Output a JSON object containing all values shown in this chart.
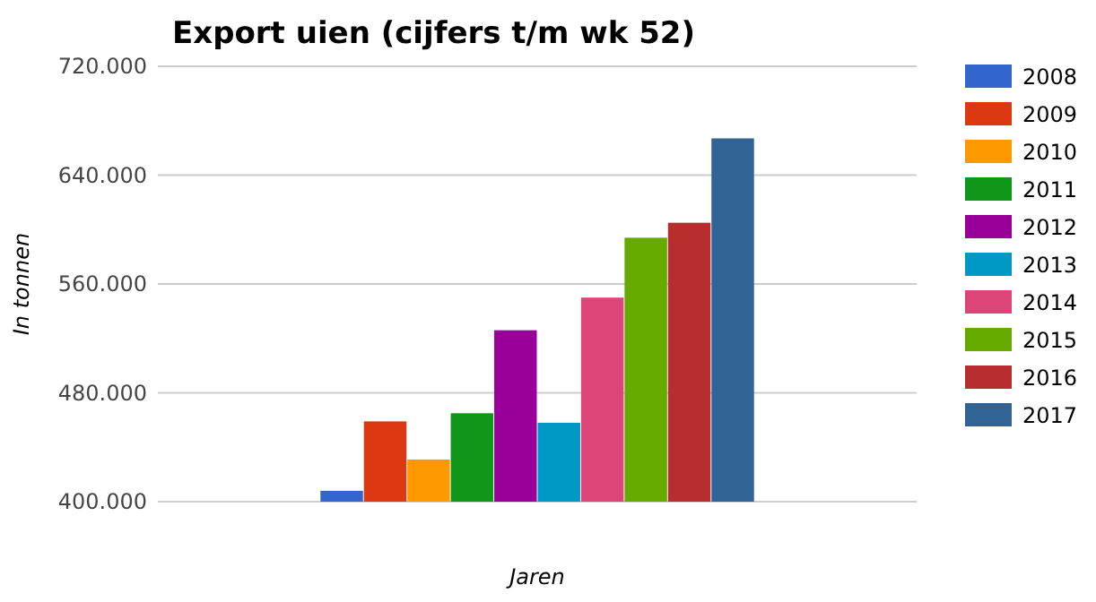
{
  "chart_data": {
    "type": "bar",
    "title": "Export uien (cijfers t/m wk 52)",
    "xlabel": "Jaren",
    "ylabel": "In tonnen",
    "categories": [
      null
    ],
    "series": [
      {
        "name": "2008",
        "color": "#3366cc",
        "values": [
          408000
        ]
      },
      {
        "name": "2009",
        "color": "#dc3912",
        "values": [
          459000
        ]
      },
      {
        "name": "2010",
        "color": "#ff9900",
        "values": [
          431000
        ]
      },
      {
        "name": "2011",
        "color": "#109618",
        "values": [
          465000
        ]
      },
      {
        "name": "2012",
        "color": "#990099",
        "values": [
          526000
        ]
      },
      {
        "name": "2013",
        "color": "#0099c6",
        "values": [
          458000
        ]
      },
      {
        "name": "2014",
        "color": "#dd4477",
        "values": [
          550000
        ]
      },
      {
        "name": "2015",
        "color": "#66aa00",
        "values": [
          594000
        ]
      },
      {
        "name": "2016",
        "color": "#b82e2e",
        "values": [
          605000
        ]
      },
      {
        "name": "2017",
        "color": "#316395",
        "values": [
          667000
        ]
      }
    ],
    "ylim": [
      400000,
      720000
    ],
    "yticks": [
      {
        "value": 400000,
        "label": "400.000"
      },
      {
        "value": 480000,
        "label": "480.000"
      },
      {
        "value": 560000,
        "label": "560.000"
      },
      {
        "value": 640000,
        "label": "640.000"
      },
      {
        "value": 720000,
        "label": "720.000"
      }
    ],
    "grid": "y",
    "legend": "right"
  }
}
